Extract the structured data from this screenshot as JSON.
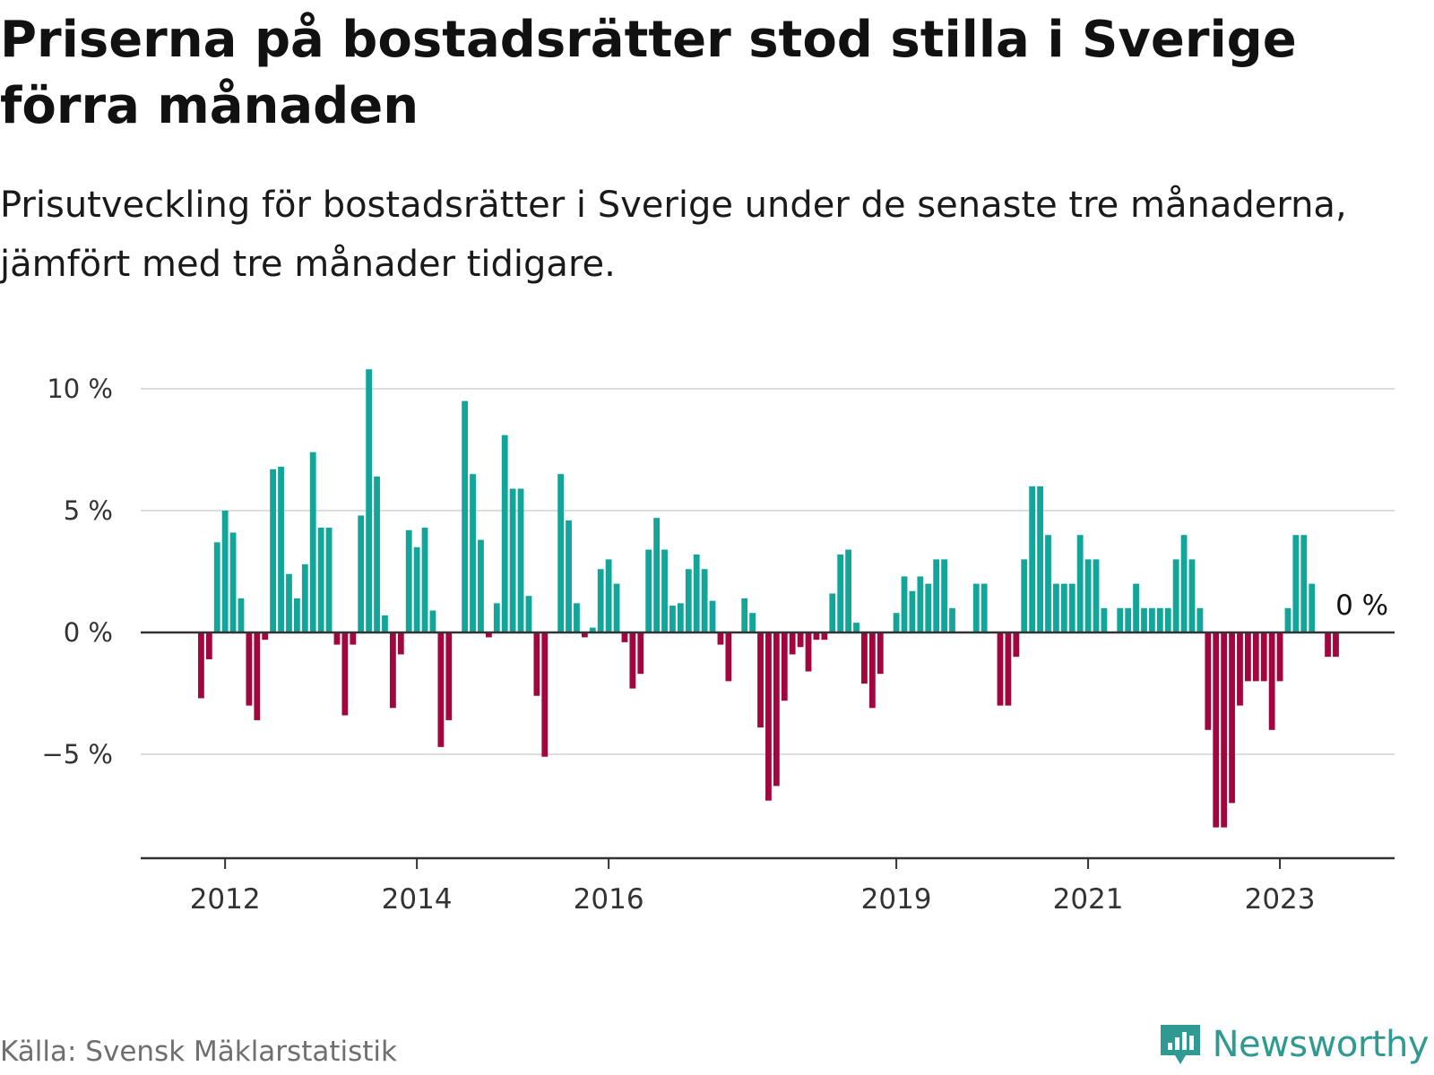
{
  "title": "Priserna på bostadsrätter stod stilla i Sverige förra månaden",
  "subtitle": "Prisutveckling för bostadsrätter i Sverige under de senaste tre månaderna, jämfört med tre månader tidigare.",
  "source": "Källa: Svensk Mäklarstatistik",
  "brand": {
    "name": "Newsworthy",
    "icon": "newsworthy-logo-icon"
  },
  "colors": {
    "positive": "#12a69a",
    "negative": "#a3053f",
    "grid": "#dddddd",
    "axis": "#333333",
    "brand": "#2f9a92"
  },
  "chart_data": {
    "type": "bar",
    "start": "2011-10",
    "ylim": [
      -9,
      11
    ],
    "yticks": [
      10,
      5,
      0,
      -5
    ],
    "ytick_labels": [
      "10 %",
      "5 %",
      "0 %",
      "−5 %"
    ],
    "xticks": [
      {
        "label": "2012",
        "date": "2012-01"
      },
      {
        "label": "2014",
        "date": "2014-01"
      },
      {
        "label": "2016",
        "date": "2016-01"
      },
      {
        "label": "2019",
        "date": "2019-01"
      },
      {
        "label": "2021",
        "date": "2021-01"
      },
      {
        "label": "2023",
        "date": "2023-01"
      }
    ],
    "end_label": "0 %",
    "grid": true,
    "legend": "none",
    "values": [
      -2.7,
      -1.1,
      3.7,
      5.0,
      4.1,
      1.4,
      -3.0,
      -3.6,
      -0.3,
      6.7,
      6.8,
      2.4,
      1.4,
      2.8,
      7.4,
      4.3,
      4.3,
      -0.5,
      -3.4,
      -0.5,
      4.8,
      10.8,
      6.4,
      0.7,
      -3.1,
      -0.9,
      4.2,
      3.5,
      4.3,
      0.9,
      -4.7,
      -3.6,
      0.0,
      9.5,
      6.5,
      3.8,
      -0.2,
      1.2,
      8.1,
      5.9,
      5.9,
      1.5,
      -2.6,
      -5.1,
      0.0,
      6.5,
      4.6,
      1.2,
      -0.2,
      0.2,
      2.6,
      3.0,
      2.0,
      -0.4,
      -2.3,
      -1.7,
      3.4,
      4.7,
      3.4,
      1.1,
      1.2,
      2.6,
      3.2,
      2.6,
      1.3,
      -0.5,
      -2.0,
      0.0,
      1.4,
      0.8,
      -3.9,
      -6.9,
      -6.3,
      -2.8,
      -0.9,
      -0.6,
      -1.6,
      -0.3,
      -0.3,
      1.6,
      3.2,
      3.4,
      0.4,
      -2.1,
      -3.1,
      -1.7,
      0.0,
      0.8,
      2.3,
      1.7,
      2.3,
      2.0,
      3.0,
      3.0,
      1.0,
      0.0,
      0.0,
      2.0,
      2.0,
      0.0,
      -3.0,
      -3.0,
      -1.0,
      3.0,
      6.0,
      6.0,
      4.0,
      2.0,
      2.0,
      2.0,
      4.0,
      3.0,
      3.0,
      1.0,
      0.0,
      1.0,
      1.0,
      2.0,
      1.0,
      1.0,
      1.0,
      1.0,
      3.0,
      4.0,
      3.0,
      1.0,
      -4.0,
      -8.0,
      -8.0,
      -7.0,
      -3.0,
      -2.0,
      -2.0,
      -2.0,
      -4.0,
      -2.0,
      1.0,
      4.0,
      4.0,
      2.0,
      0.0,
      -1.0,
      -1.0
    ]
  }
}
